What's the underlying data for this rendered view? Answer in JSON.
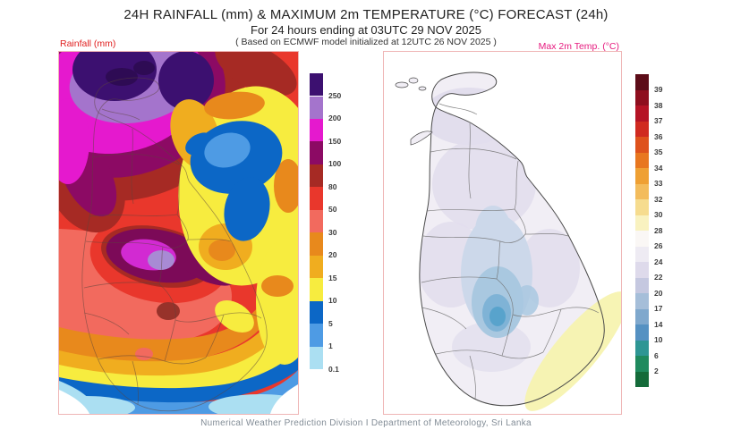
{
  "header": {
    "title": "24H RAINFALL (mm) & MAXIMUM 2m TEMPERATURE (°C) FORECAST (24h)",
    "subtitle": "For 24 hours ending at 03UTC 29 NOV 2025",
    "model_note": "( Based on ECMWF model initialized at 12UTC 26 NOV 2025 )"
  },
  "rainfall_panel": {
    "label": "Rainfall (mm)",
    "label_color": "#e02020",
    "colorbar": {
      "unit": "mm",
      "labels": [
        "250",
        "200",
        "150",
        "100",
        "80",
        "50",
        "30",
        "20",
        "15",
        "10",
        "5",
        "1",
        "0.1"
      ],
      "colors": [
        "#3c1070",
        "#a474cc",
        "#e519ce",
        "#8c0a64",
        "#a62a24",
        "#e9372c",
        "#f26a5e",
        "#e8891c",
        "#f0ad1f",
        "#f7ec3f",
        "#0c67c6",
        "#4e9be4",
        "#abdff2"
      ]
    }
  },
  "temperature_panel": {
    "label": "Max 2m Temp. (°C)",
    "label_color": "#e6197e",
    "colorbar": {
      "unit": "°C",
      "labels": [
        "39",
        "38",
        "37",
        "36",
        "35",
        "34",
        "33",
        "32",
        "30",
        "28",
        "26",
        "24",
        "22",
        "20",
        "17",
        "14",
        "10",
        "6",
        "2"
      ],
      "colors": [
        "#5c0c18",
        "#8e0e1e",
        "#b51325",
        "#d02a20",
        "#de521c",
        "#e8771f",
        "#efa033",
        "#f3bc5c",
        "#f6dc8f",
        "#f9f2c0",
        "#faf7f5",
        "#eeebf3",
        "#dedaeb",
        "#c5c8e0",
        "#a5bed9",
        "#7fa8cd",
        "#5591c2",
        "#2e9694",
        "#1f8a5e",
        "#146b3a"
      ]
    }
  },
  "footer": {
    "credit": "Numerical Weather Prediction Division I Department of Meteorology, Sri Lanka"
  },
  "colors": {
    "panel_border": "#efb6b6",
    "credit_text": "#828c96"
  }
}
